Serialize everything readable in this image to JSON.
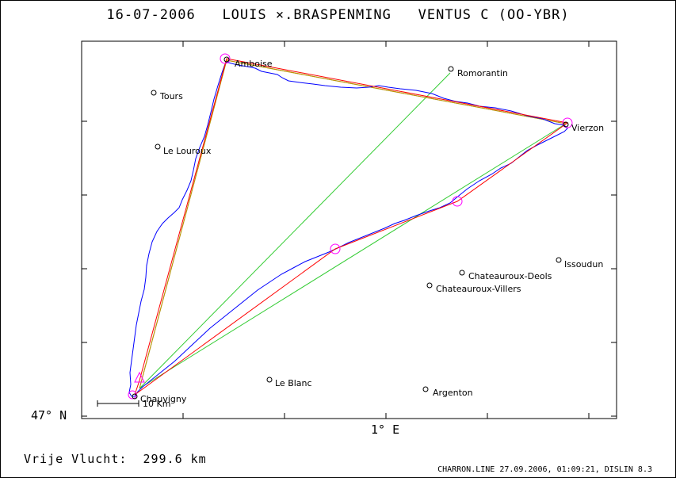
{
  "header": {
    "date": "16-07-2006",
    "pilot": "LOUIS ×.BRASPENMING",
    "glider": "VENTUS C (OO-YBR)"
  },
  "axes": {
    "lat_label": "47° N",
    "lon_label": "1° E",
    "scale_label": "10 Km"
  },
  "footer": {
    "distance": "Vrije Vlucht:  299.6 km",
    "credit": "CHARRON.LINE 27.09.2006, 01:09:21, DISLIN 8.3"
  },
  "colors": {
    "track": "#0000ff",
    "optimized_route": "#ff0000",
    "task_legs": "#00cc00",
    "turnpoint_marker": "#ff00ff",
    "leg_orange": "#cc8800"
  },
  "places": [
    {
      "name": "Amboise"
    },
    {
      "name": "Romorantin"
    },
    {
      "name": "Tours"
    },
    {
      "name": "Le Louroux"
    },
    {
      "name": "Vierzon"
    },
    {
      "name": "Issoudun"
    },
    {
      "name": "Chateauroux-Deols"
    },
    {
      "name": "Chateauroux-Villers"
    },
    {
      "name": "Le Blanc"
    },
    {
      "name": "Argenton"
    },
    {
      "name": "Chauvigny"
    }
  ]
}
